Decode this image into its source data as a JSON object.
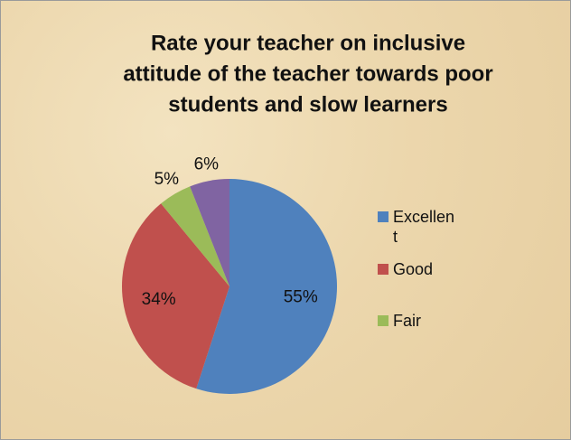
{
  "chart_data": {
    "type": "pie",
    "title": [
      "Rate your teacher on inclusive",
      "attitude of the teacher towards poor",
      "students and slow learners"
    ],
    "categories": [
      "Excellent",
      "Good",
      "Fair",
      null
    ],
    "values": [
      55,
      34,
      5,
      6
    ],
    "value_labels": [
      "55%",
      "34%",
      "5%",
      "6%"
    ],
    "colors": [
      "#4f81bd",
      "#c0504d",
      "#9bbb59",
      "#8064a2"
    ],
    "legend": "right"
  }
}
